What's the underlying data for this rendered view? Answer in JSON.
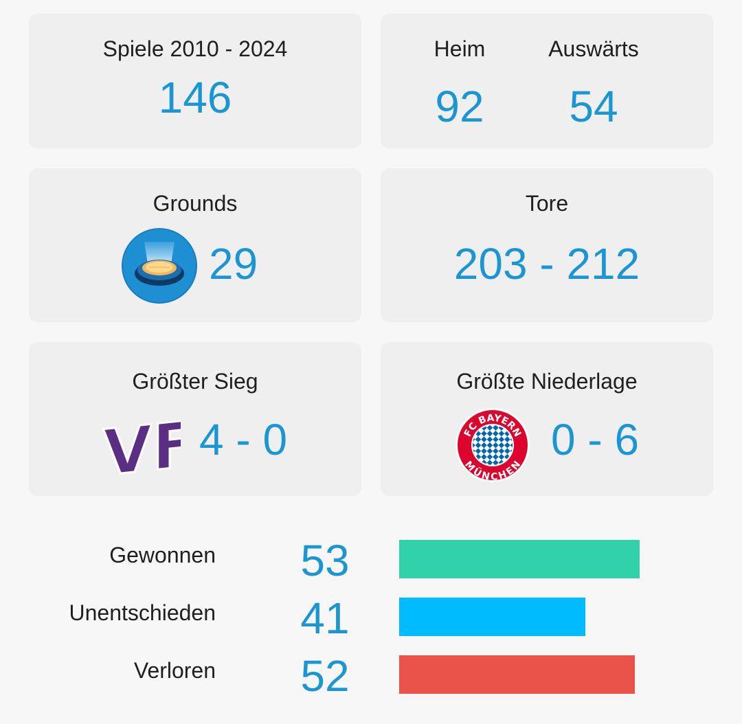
{
  "games": {
    "label": "Spiele 2010 - 2024",
    "value": "146"
  },
  "home_away": {
    "home_label": "Heim",
    "home_value": "92",
    "away_label": "Auswärts",
    "away_value": "54"
  },
  "grounds": {
    "label": "Grounds",
    "value": "29",
    "icon": "stadium-icon"
  },
  "goals": {
    "label": "Tore",
    "value": "203 - 212"
  },
  "biggest_win": {
    "label": "Größter Sieg",
    "score": "4 - 0",
    "logo_text": "VFL",
    "logo": "vfl-osnabrueck-logo"
  },
  "biggest_loss": {
    "label": "Größte Niederlage",
    "score": "0 - 6",
    "logo_text_top": "FC BAYERN",
    "logo_text_bottom": "MÜNCHEN",
    "logo": "fc-bayern-logo"
  },
  "results": [
    {
      "label": "Gewonnen",
      "value": "53",
      "count": 53,
      "color": "#31d1aa"
    },
    {
      "label": "Unentschieden",
      "value": "41",
      "count": 41,
      "color": "#00bcff"
    },
    {
      "label": "Verloren",
      "value": "52",
      "count": 52,
      "color": "#ea5349"
    }
  ],
  "colors": {
    "accent": "#1b96d0",
    "card": "#efefef",
    "background": "#f7f7f7"
  }
}
